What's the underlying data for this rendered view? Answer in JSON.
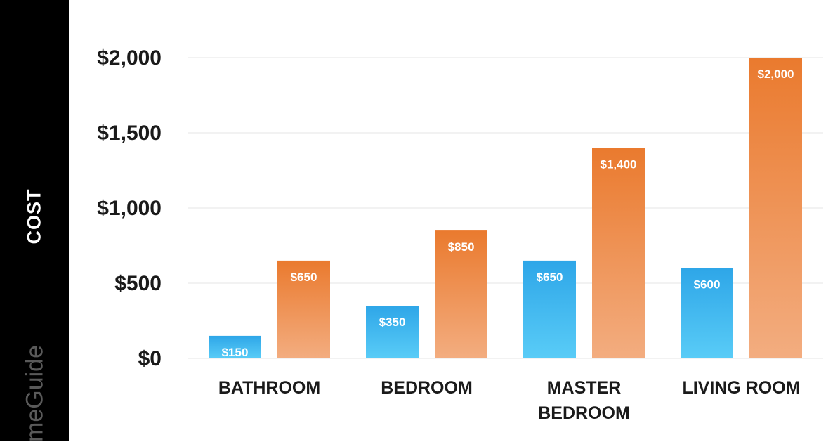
{
  "chart_data": {
    "type": "bar",
    "ylabel": "COST",
    "categories": [
      [
        "BATHROOM"
      ],
      [
        "BEDROOM"
      ],
      [
        "MASTER",
        "BEDROOM"
      ],
      [
        "LIVING ROOM"
      ]
    ],
    "ylim": [
      0,
      2000
    ],
    "yticks": [
      {
        "value": 0,
        "label": "$0"
      },
      {
        "value": 500,
        "label": "$500"
      },
      {
        "value": 1000,
        "label": "$1,000"
      },
      {
        "value": 1500,
        "label": "$1,500"
      },
      {
        "value": 2000,
        "label": "$2,000"
      }
    ],
    "grid": true,
    "series": [
      {
        "values": [
          150,
          350,
          650,
          600
        ],
        "labels": [
          "$150",
          "$350",
          "$650",
          "$600"
        ],
        "color_top": "#2ea6e8",
        "color_bottom": "#59ccf7"
      },
      {
        "values": [
          650,
          850,
          1400,
          2000
        ],
        "labels": [
          "$650",
          "$850",
          "$1,400",
          "$2,000"
        ],
        "color_top": "#ea7a2e",
        "color_bottom": "#f3ad80"
      }
    ]
  },
  "watermark": "meGuide"
}
